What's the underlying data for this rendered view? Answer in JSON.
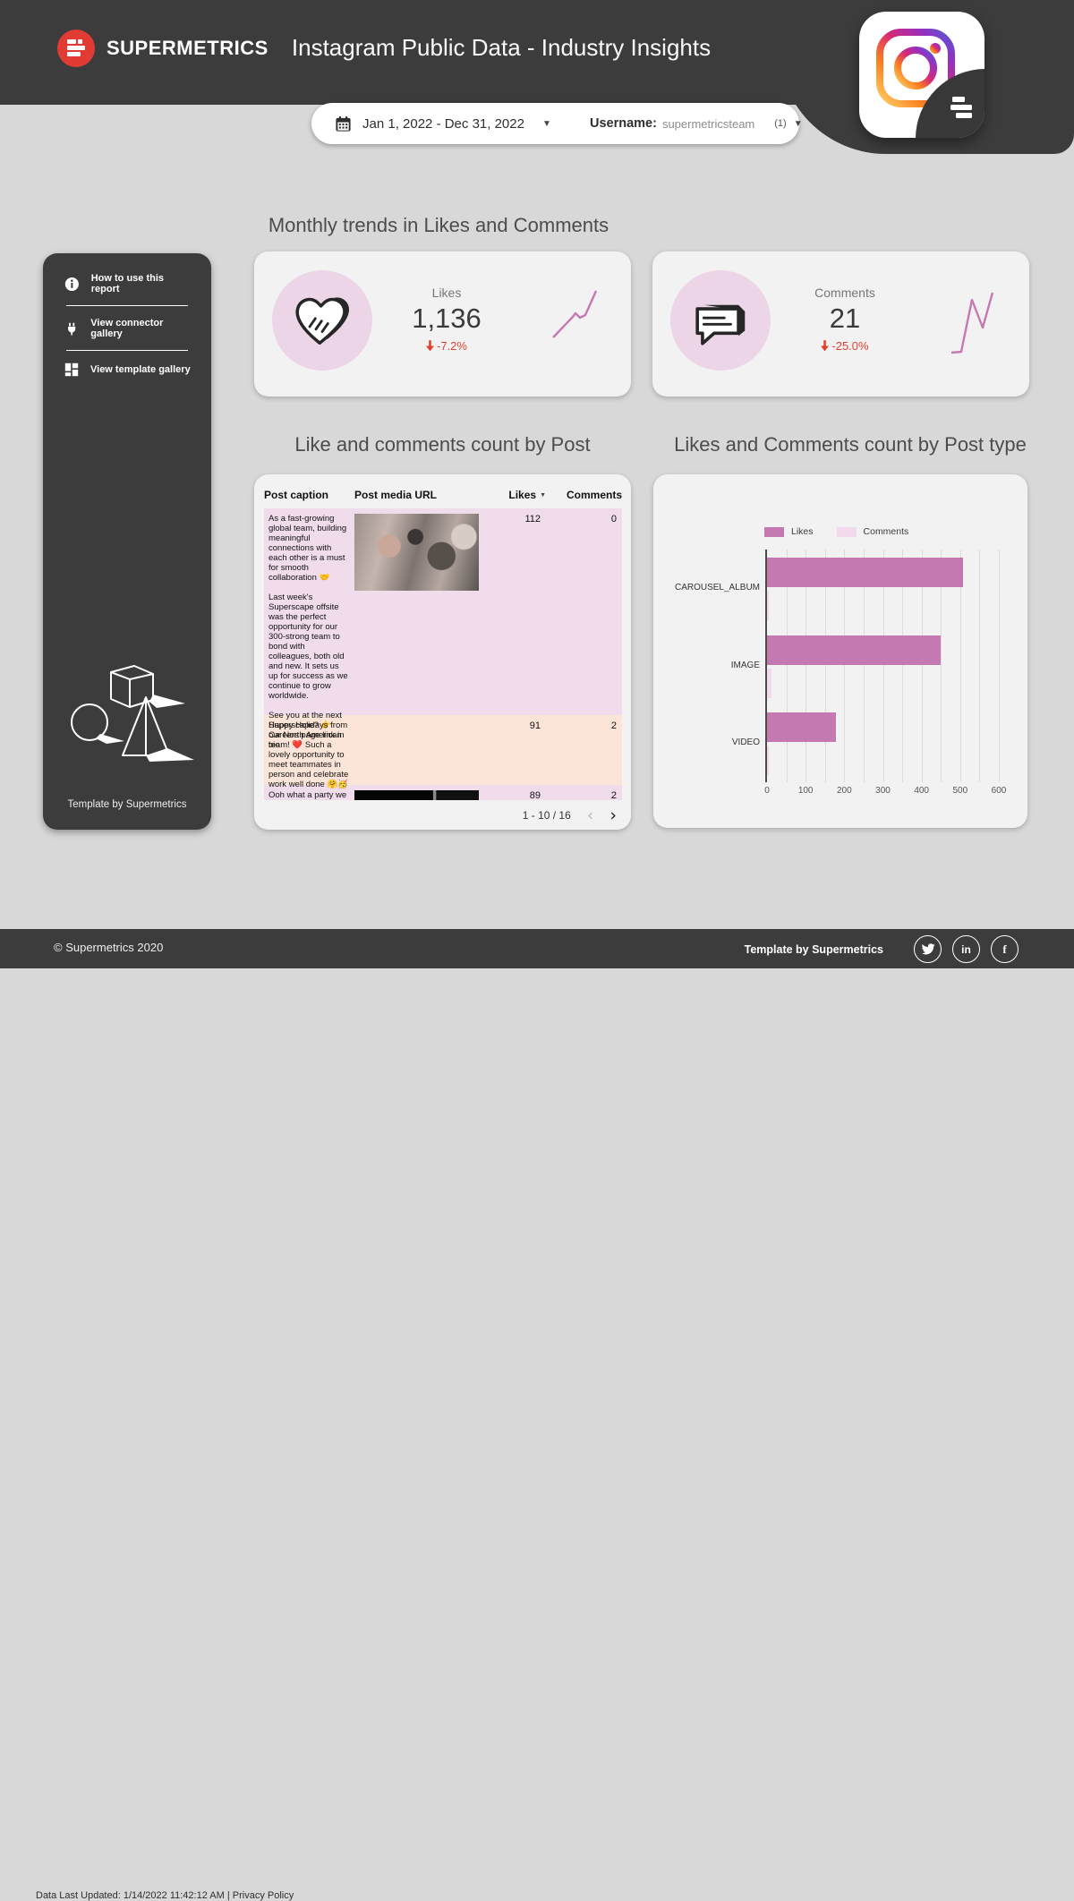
{
  "header": {
    "brand": "SUPERMETRICS",
    "title": "Instagram Public Data - Industry Insights"
  },
  "filters": {
    "date_range": "Jan 1, 2022 - Dec 31, 2022",
    "username_label": "Username:",
    "username_value": "supermetricsteam",
    "username_count": "(1)"
  },
  "sidebar": {
    "items": [
      {
        "icon": "info-icon",
        "label": "How to use this report"
      },
      {
        "icon": "plug-icon",
        "label": "View connector gallery"
      },
      {
        "icon": "grid-icon",
        "label": "View template gallery"
      }
    ],
    "footer_label": "Template by Supermetrics"
  },
  "sections": {
    "trends_title": "Monthly trends in Likes and Comments",
    "table_title": "Like and comments count by Post",
    "chart_title": "Likes and Comments count by Post type"
  },
  "scorecards": [
    {
      "metric": "Likes",
      "value": "1,136",
      "delta": "-7.2%",
      "icon": "heart-icon"
    },
    {
      "metric": "Comments",
      "value": "21",
      "delta": "-25.0%",
      "icon": "comment-icon"
    }
  ],
  "table": {
    "columns": [
      "Post caption",
      "Post media URL",
      "Likes",
      "Comments"
    ],
    "sorted_column": "Likes",
    "rows": [
      {
        "caption": "As a fast-growing global team, building meaningful connections with each other is a must for smooth collaboration 🤝\n\nLast week's Superscape offsite was the perfect opportunity for our 300-strong team to bond with colleagues, both old and new. It sets us up for success as we continue to grow worldwide.\n\nSee you at the next Superscape? 👉 Careers page link in bio",
        "image": "photo",
        "likes": "112",
        "comments": "0"
      },
      {
        "caption": "Happy Holidays from our North American team! ❤️ Such a lovely opportunity to meet teammates in person and celebrate work well done 🤗🥳",
        "image": "",
        "likes": "91",
        "comments": "2"
      },
      {
        "caption": "Ooh what a party we had last night 🎉",
        "image": "dark",
        "likes": "89",
        "comments": "2"
      }
    ],
    "pagination": "1 - 10 / 16"
  },
  "chart_data": {
    "type": "bar",
    "orientation": "horizontal",
    "title": "Likes and Comments count by Post type",
    "categories": [
      "CAROUSEL_ALBUM",
      "IMAGE",
      "VIDEO"
    ],
    "series": [
      {
        "name": "Likes",
        "color": "#c579b1",
        "values": [
          508,
          450,
          178
        ]
      },
      {
        "name": "Comments",
        "color": "#f3d9ec",
        "values": [
          4,
          12,
          5
        ]
      }
    ],
    "xlim": [
      0,
      620
    ],
    "ticks": [
      0,
      100,
      200,
      300,
      400,
      500,
      600
    ],
    "grid_step": 50,
    "legend_position": "top"
  },
  "footer": {
    "copyright": "© Supermetrics 2020",
    "template_label": "Template by Supermetrics",
    "socials": [
      "twitter-icon",
      "linkedin-icon",
      "facebook-icon"
    ],
    "fine_print": "Data Last Updated: 1/14/2022 11:42:12 AM  |  Privacy Policy"
  },
  "colors": {
    "accent_pink": "#c579b1",
    "light_pink": "#f3d9ec",
    "circle_pink": "#ecd5e6",
    "negative_red": "#e2402c",
    "dark": "#3c3c3c",
    "row_pink": "#f1dcec",
    "row_peach": "#fce5d8"
  }
}
